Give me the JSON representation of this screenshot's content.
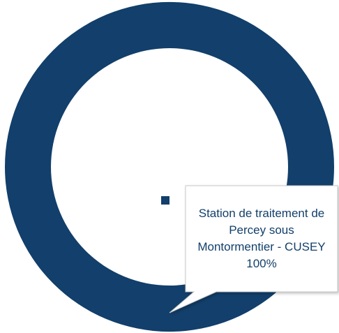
{
  "chart_data": {
    "type": "doughnut",
    "categories": [
      "Station de traitement de Percey sous Montormentier - CUSEY"
    ],
    "values": [
      100
    ],
    "value_labels": [
      "100%"
    ],
    "colors": [
      "#123f6b"
    ]
  }
}
